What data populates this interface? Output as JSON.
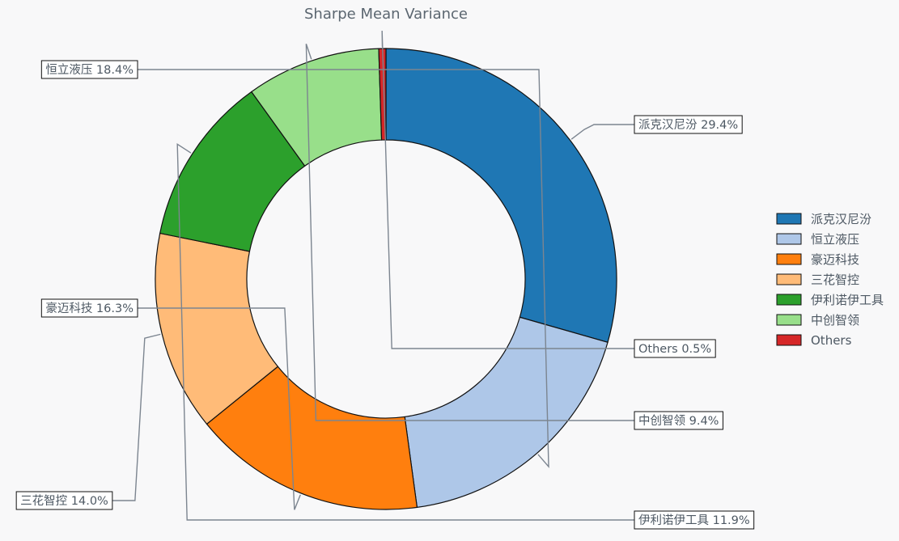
{
  "chart_data": {
    "type": "donut",
    "title": "Sharpe Mean Variance",
    "slices": [
      {
        "label": "派克汉尼汾",
        "value": 29.4,
        "display": "派克汉尼汾 29.4%",
        "color": "#1f77b4"
      },
      {
        "label": "恒立液压",
        "value": 18.4,
        "display": "恒立液压 18.4%",
        "color": "#aec7e8"
      },
      {
        "label": "豪迈科技",
        "value": 16.3,
        "display": "豪迈科技 16.3%",
        "color": "#ff7f0e"
      },
      {
        "label": "三花智控",
        "value": 14.0,
        "display": "三花智控 14.0%",
        "color": "#ffbb78"
      },
      {
        "label": "伊利诺伊工具",
        "value": 11.9,
        "display": "伊利诺伊工具 11.9%",
        "color": "#2ca02c"
      },
      {
        "label": "中创智领",
        "value": 9.4,
        "display": "中创智领 9.4%",
        "color": "#98df8a"
      },
      {
        "label": "Others",
        "value": 0.5,
        "display": "Others 0.5%",
        "color": "#d62728"
      }
    ],
    "legend": {
      "position": "right",
      "entries": [
        "派克汉尼汾",
        "恒立液压",
        "豪迈科技",
        "三花智控",
        "伊利诺伊工具",
        "中创智领",
        "Others"
      ]
    }
  }
}
